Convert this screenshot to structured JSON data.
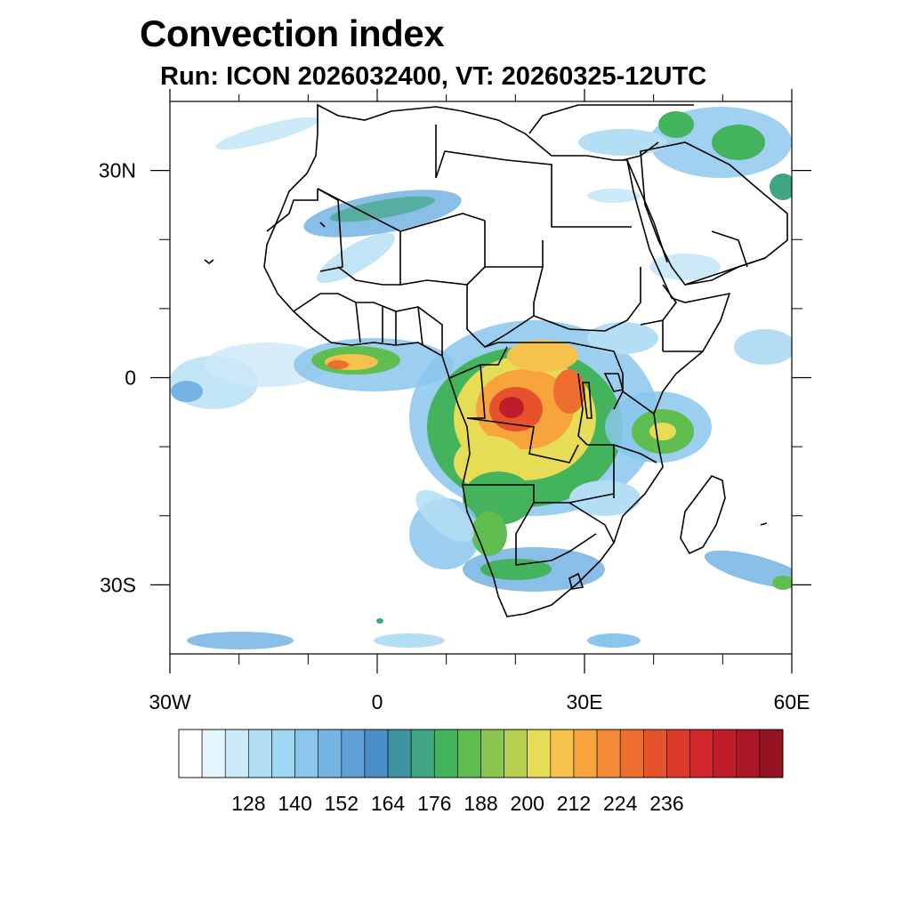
{
  "title": "Convection index",
  "subtitle": "Run: ICON 2026032400,  VT: 20260325-12UTC",
  "map": {
    "extent": {
      "lon": [
        -30,
        60
      ],
      "lat": [
        -40,
        40
      ]
    },
    "x_ticks": [
      {
        "lon": -30,
        "label": "30W"
      },
      {
        "lon": 0,
        "label": "0"
      },
      {
        "lon": 30,
        "label": "30E"
      },
      {
        "lon": 60,
        "label": "60E"
      }
    ],
    "y_ticks": [
      {
        "lat": 30,
        "label": "30N"
      },
      {
        "lat": 0,
        "label": "0"
      },
      {
        "lat": -30,
        "label": "30S"
      }
    ],
    "minor_x": [
      -20,
      -10,
      10,
      20,
      40,
      50
    ],
    "minor_y": [
      20,
      10,
      -10,
      -20
    ]
  },
  "colorbar": {
    "colors": [
      "#ffffff",
      "#e6f4fb",
      "#cce9f7",
      "#b3def3",
      "#9fd6f2",
      "#8ac6ec",
      "#74b3e2",
      "#5f9fd6",
      "#4b8fc9",
      "#3d93a0",
      "#3fa681",
      "#44b35e",
      "#60bd4f",
      "#8cc651",
      "#b5d04f",
      "#e6dc55",
      "#f6c24c",
      "#f7a43d",
      "#f38a36",
      "#ee6e30",
      "#e6522b",
      "#dc3a2b",
      "#cf272b",
      "#bf1d29",
      "#ab1726",
      "#941422"
    ],
    "labels": [
      "128",
      "140",
      "152",
      "164",
      "176",
      "188",
      "200",
      "212",
      "224",
      "236"
    ]
  }
}
